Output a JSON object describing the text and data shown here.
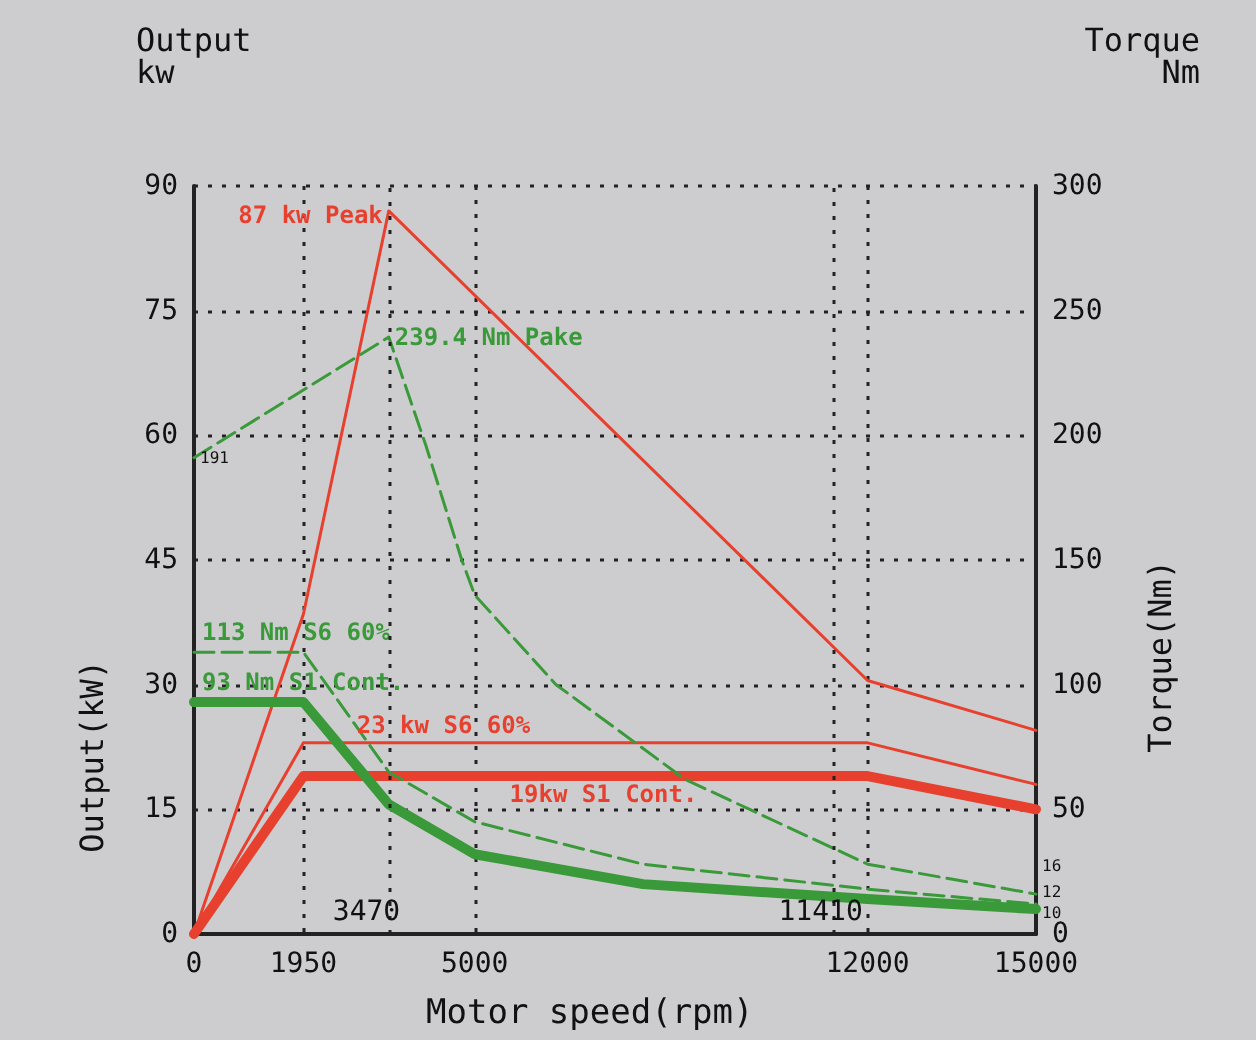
{
  "chart_data": {
    "type": "line",
    "xlabel": "Motor speed(rpm)",
    "ylabel": "Output(kW)",
    "y2label": "Torque(Nm)",
    "annotations": [
      "Output\nkw",
      "Torque\nNm"
    ],
    "xlim": [
      0,
      15000
    ],
    "xticks": [
      0,
      1950,
      5000,
      12000,
      15000
    ],
    "ylim": [
      0,
      90
    ],
    "yticks": [
      0,
      15,
      30,
      45,
      60,
      75,
      90
    ],
    "y2lim": [
      0,
      300
    ],
    "y2ticks": [
      0,
      50,
      100,
      150,
      200,
      250,
      300
    ],
    "grid": true,
    "legend": false,
    "marker": "none",
    "ref_lines": [
      {
        "axis": "x",
        "value": 3470,
        "label": "3470"
      },
      {
        "axis": "x",
        "value": 11410,
        "label": "11410"
      }
    ],
    "series": [
      {
        "name": "87 kw Peak",
        "color": "#e8402e",
        "line_style": "solid",
        "x": [
          0,
          1950,
          3470,
          12000,
          15000
        ],
        "values": [
          0,
          38.5,
          87,
          30.5,
          24.5
        ]
      },
      {
        "name": "23 kw S6 60%",
        "color": "#e8402e",
        "line_style": "solid",
        "x": [
          0,
          1950,
          12000,
          15000
        ],
        "values": [
          0,
          23,
          23,
          18
        ]
      },
      {
        "name": "19kw S1 Cont.",
        "color": "#e8402e",
        "line_style": "solid",
        "x": [
          0,
          1950,
          12000,
          15000
        ],
        "values": [
          0,
          19,
          19,
          15
        ]
      },
      {
        "name": "239.4 Nm Pake",
        "color": "#3a9a3a",
        "line_style": "dashed",
        "axis": "y2",
        "x": [
          0,
          3470,
          4130,
          4770,
          5000,
          6450,
          8750,
          12000,
          15000
        ],
        "values": [
          191,
          239.4,
          196,
          150,
          136,
          100,
          62,
          28,
          16
        ],
        "value_labels": [
          "191",
          null,
          null,
          null,
          null,
          null,
          null,
          null,
          "16"
        ]
      },
      {
        "name": "113 Nm S6 60%",
        "color": "#3a9a3a",
        "line_style": "dashed",
        "axis": "y2",
        "x": [
          0,
          1950,
          3470,
          5000,
          8000,
          12000,
          15000
        ],
        "values": [
          113,
          113,
          65,
          45,
          28,
          18,
          12
        ],
        "value_labels": [
          null,
          null,
          null,
          null,
          null,
          null,
          "12"
        ]
      },
      {
        "name": "93 Nm S1 Cont.",
        "color": "#3a9a3a",
        "line_style": "solid",
        "axis": "y2",
        "x": [
          0,
          1950,
          3470,
          5000,
          8000,
          12000,
          15000
        ],
        "values": [
          93,
          93,
          52,
          32,
          20,
          14,
          10
        ],
        "value_labels": [
          null,
          null,
          null,
          null,
          null,
          null,
          "10"
        ]
      }
    ]
  }
}
